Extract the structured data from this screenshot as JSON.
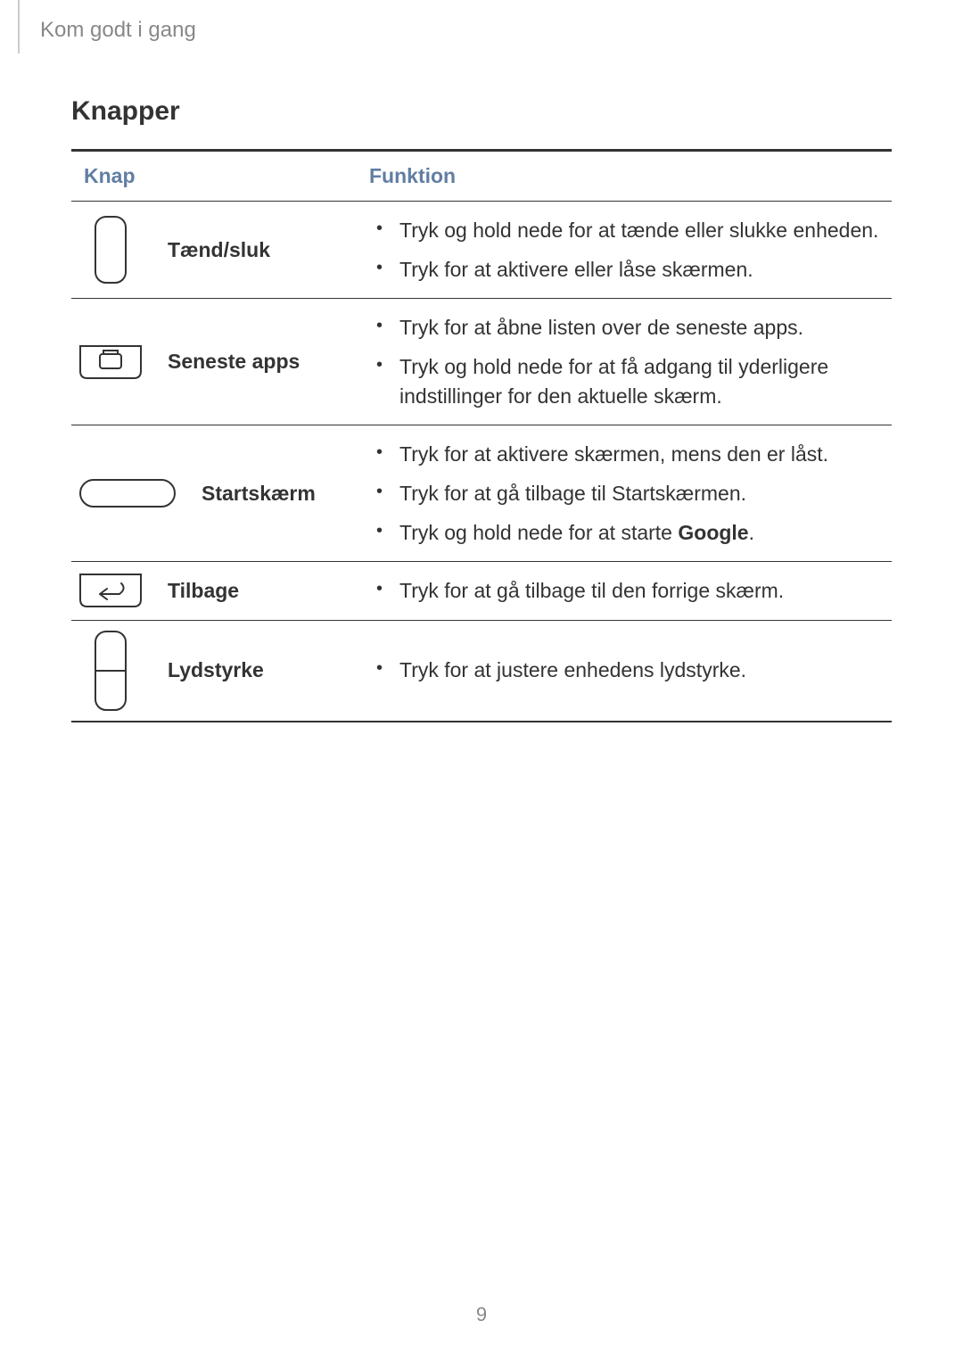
{
  "header": {
    "breadcrumb": "Kom godt i gang"
  },
  "section": {
    "title": "Knapper"
  },
  "table": {
    "headers": {
      "col1": "Knap",
      "col2": "Funktion"
    },
    "rows": [
      {
        "icon": "power",
        "label": "Tænd/sluk",
        "items": [
          {
            "text": "Tryk og hold nede for at tænde eller slukke enheden."
          },
          {
            "text": "Tryk for at aktivere eller låse skærmen."
          }
        ]
      },
      {
        "icon": "recent",
        "label": "Seneste apps",
        "items": [
          {
            "text": "Tryk for at åbne listen over de seneste apps."
          },
          {
            "text": "Tryk og hold nede for at få adgang til yderligere indstillinger for den aktuelle skærm."
          }
        ]
      },
      {
        "icon": "home",
        "label": "Startskærm",
        "items": [
          {
            "text": "Tryk for at aktivere skærmen, mens den er låst."
          },
          {
            "text": "Tryk for at gå tilbage til Startskærmen."
          },
          {
            "text_prefix": "Tryk og hold nede for at starte ",
            "bold": "Google",
            "text_suffix": "."
          }
        ]
      },
      {
        "icon": "back",
        "label": "Tilbage",
        "items": [
          {
            "text": "Tryk for at gå tilbage til den forrige skærm."
          }
        ]
      },
      {
        "icon": "volume",
        "label": "Lydstyrke",
        "items": [
          {
            "text": "Tryk for at justere enhedens lydstyrke."
          }
        ]
      }
    ]
  },
  "page_number": "9",
  "style": {
    "icon_stroke": "#333333",
    "icon_fill": "none",
    "header_accent": "#617ea3"
  }
}
